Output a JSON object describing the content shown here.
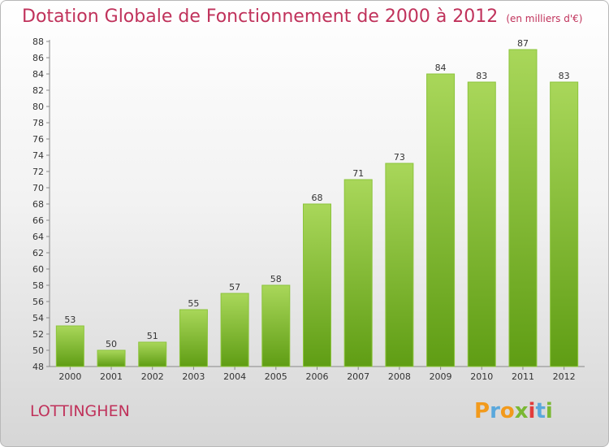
{
  "title": {
    "main": "Dotation Globale de Fonctionnement de 2000 à 2012",
    "unit": "(en milliers d'€)"
  },
  "commune": "LOTTINGHEN",
  "logo": {
    "letters": [
      "P",
      "r",
      "o",
      "x",
      "i",
      "t",
      "i"
    ],
    "colors": [
      "#f29a1c",
      "#5aa8dc",
      "#f29a1c",
      "#7ab833",
      "#e23c3c",
      "#5aa8dc",
      "#7ab833"
    ]
  },
  "colors": {
    "bar_light": "#a9d75a",
    "bar_dark": "#5f9d14",
    "title": "#c0325b"
  },
  "chart_data": {
    "type": "bar",
    "title": "Dotation Globale de Fonctionnement de 2000 à 2012",
    "subtitle": "(en milliers d'€)",
    "xlabel": "",
    "ylabel": "",
    "categories": [
      "2000",
      "2001",
      "2002",
      "2003",
      "2004",
      "2005",
      "2006",
      "2007",
      "2008",
      "2009",
      "2010",
      "2011",
      "2012"
    ],
    "values": [
      53,
      50,
      51,
      55,
      57,
      58,
      68,
      71,
      73,
      84,
      83,
      87,
      83
    ],
    "ylim": [
      48,
      88
    ],
    "ytick_step": 2,
    "grid": false,
    "legend": "none"
  }
}
